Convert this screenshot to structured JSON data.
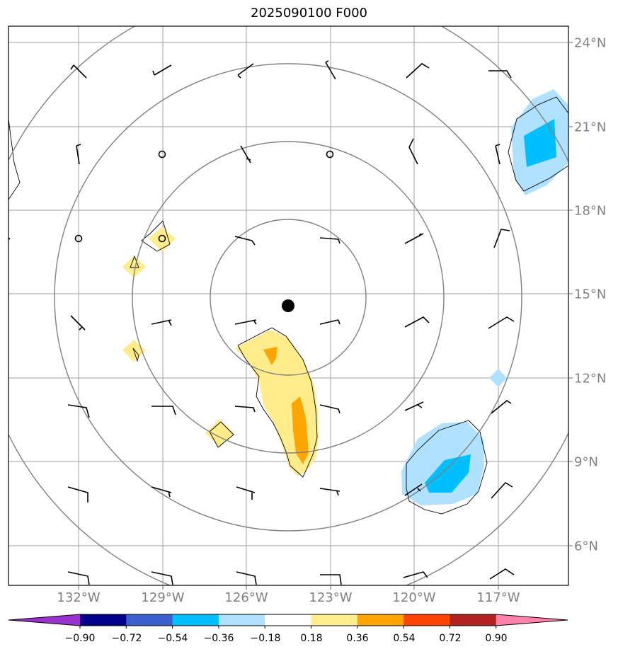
{
  "map": {
    "title": "2025090100 F000",
    "lat_labels": [
      "24°N",
      "21°N",
      "18°N",
      "15°N",
      "12°N",
      "9°N",
      "6°N"
    ],
    "lon_labels": [
      "132°W",
      "129°W",
      "126°W",
      "123°W",
      "120°W",
      "117°W"
    ],
    "storm_center": {
      "lat": 14.6,
      "lon": -124.5
    },
    "range_ring_radii_deg": [
      2.75,
      5.5,
      8.25,
      11.0
    ]
  },
  "colorbar": {
    "ticks": [
      "−0.90",
      "−0.72",
      "−0.54",
      "−0.36",
      "−0.18",
      "0.18",
      "0.36",
      "0.54",
      "0.72",
      "0.90"
    ],
    "colors": [
      "#9a32cd",
      "#00008b",
      "#3a5fcd",
      "#00bfff",
      "#b0e2ff",
      "#ffffff",
      "#ffec8b",
      "#ffa500",
      "#ff4500",
      "#b22222",
      "#ff82ab"
    ]
  }
}
